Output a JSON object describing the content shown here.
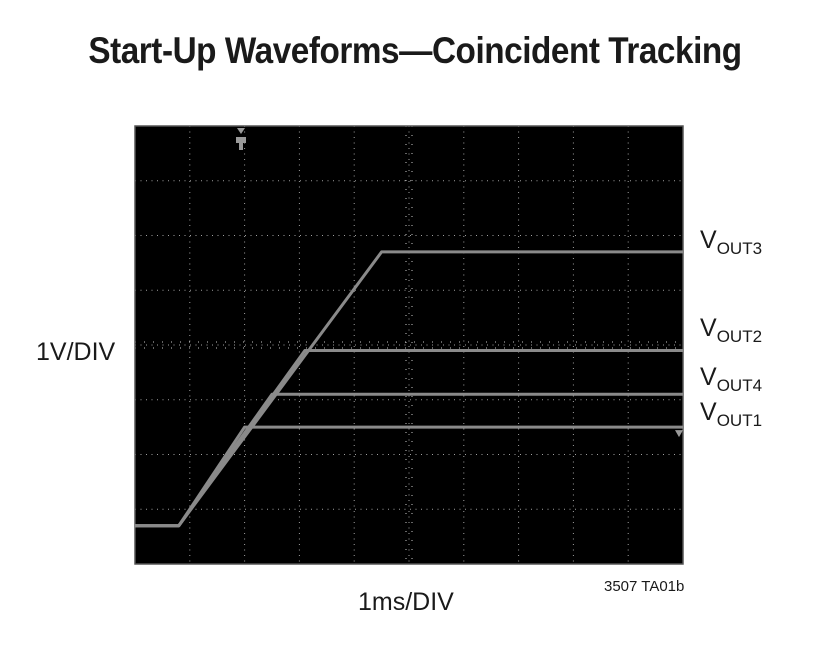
{
  "chart_data": {
    "type": "line",
    "title": "Start-Up Waveforms—Coincident Tracking",
    "xlabel": "1ms/DIV",
    "ylabel": "1V/DIV",
    "figure_id": "3507 TA01b",
    "x_unit": "ms",
    "y_unit": "V",
    "xlim": [
      0,
      10
    ],
    "ylim": [
      -0.7,
      7.3
    ],
    "grid": true,
    "grid_divisions": {
      "x": 10,
      "y": 8
    },
    "series": [
      {
        "name": "VOUT3",
        "label_main": "V",
        "label_sub": "OUT3",
        "x": [
          0,
          0.8,
          4.5,
          10
        ],
        "y": [
          0,
          0,
          5.0,
          5.0
        ]
      },
      {
        "name": "VOUT2",
        "label_main": "V",
        "label_sub": "OUT2",
        "x": [
          0,
          0.8,
          3.1,
          10
        ],
        "y": [
          0,
          0,
          3.2,
          3.2
        ]
      },
      {
        "name": "VOUT4",
        "label_main": "V",
        "label_sub": "OUT4",
        "x": [
          0,
          0.8,
          2.5,
          10
        ],
        "y": [
          0,
          0,
          2.4,
          2.4
        ]
      },
      {
        "name": "VOUT1",
        "label_main": "V",
        "label_sub": "OUT1",
        "x": [
          0,
          0.8,
          2.0,
          10
        ],
        "y": [
          0,
          0,
          1.8,
          1.8
        ]
      }
    ],
    "trace_color": "#8a8a8a",
    "screen_color": "#000000",
    "grid_color": "#c8c8c8"
  }
}
